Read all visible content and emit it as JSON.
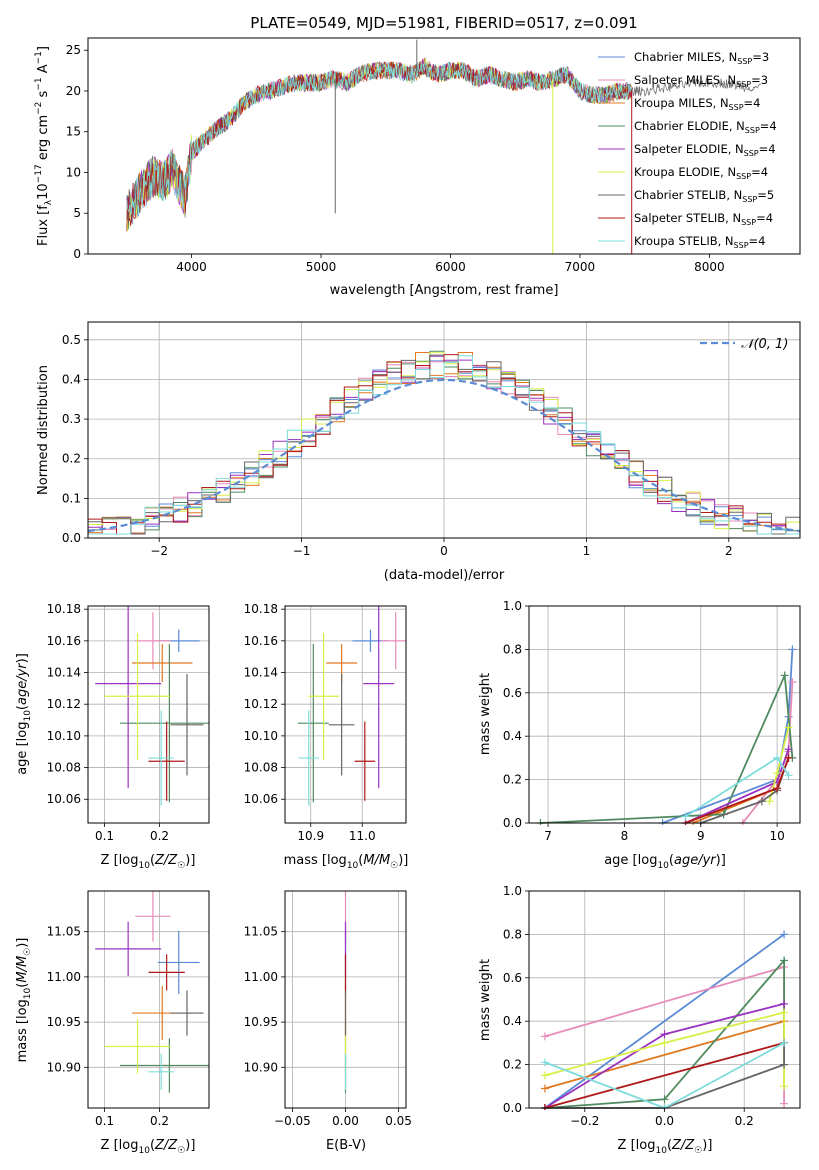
{
  "title": "PLATE=0549, MJD=51981, FIBERID=0517, z=0.091",
  "colors": {
    "chabrier_miles": "#5b8bd5",
    "salpeter_miles": "#e88bb8",
    "kroupa_miles": "#e07820",
    "chabrier_elodie": "#4f8a5f",
    "salpeter_elodie": "#9a32c0",
    "kroupa_elodie": "#d8ef48",
    "chabrier_stelib": "#666666",
    "salpeter_stelib": "#b01818",
    "kroupa_stelib": "#7fdcdc",
    "normal": "#5b8bd5",
    "grid": "#b0b0b0"
  },
  "chart_data": [
    {
      "id": "spectrum",
      "type": "line",
      "xlabel": "wavelength [Angstrom, rest frame]",
      "ylabel": "Flux [f_λ10^{-17} erg cm^{-2} s^{-1} A^{-1}]",
      "xlim": [
        3200,
        8700
      ],
      "ylim": [
        0,
        26.5
      ],
      "xticks": [
        4000,
        5000,
        6000,
        7000,
        8000
      ],
      "yticks": [
        0,
        5,
        10,
        15,
        20,
        25
      ],
      "grid": false,
      "legend_position": "top-right",
      "legend": [
        {
          "main": "Chabrier MILES, N",
          "sub": "SSP",
          "tail": "=3",
          "color": "#5b8bd5"
        },
        {
          "main": "Salpeter MILES, N",
          "sub": "SSP",
          "tail": "=3",
          "color": "#e88bb8"
        },
        {
          "main": "Kroupa MILES, N",
          "sub": "SSP",
          "tail": "=4",
          "color": "#e07820"
        },
        {
          "main": "Chabrier ELODIE, N",
          "sub": "SSP",
          "tail": "=4",
          "color": "#4f8a5f"
        },
        {
          "main": "Salpeter ELODIE, N",
          "sub": "SSP",
          "tail": "=4",
          "color": "#9a32c0"
        },
        {
          "main": "Kroupa ELODIE, N",
          "sub": "SSP",
          "tail": "=4",
          "color": "#d8ef48"
        },
        {
          "main": "Chabrier STELIB, N",
          "sub": "SSP",
          "tail": "=5",
          "color": "#666666"
        },
        {
          "main": "Salpeter STELIB, N",
          "sub": "SSP",
          "tail": "=4",
          "color": "#b01818"
        },
        {
          "main": "Kroupa STELIB, N",
          "sub": "SSP",
          "tail": "=4",
          "color": "#7fdcdc"
        }
      ],
      "continuum": [
        [
          3500,
          5.0
        ],
        [
          3600,
          7.5
        ],
        [
          3700,
          9.5
        ],
        [
          3800,
          9.0
        ],
        [
          3850,
          10.5
        ],
        [
          3950,
          7.0
        ],
        [
          4000,
          12.5
        ],
        [
          4100,
          14.0
        ],
        [
          4200,
          15.5
        ],
        [
          4300,
          16.5
        ],
        [
          4400,
          18.5
        ],
        [
          4500,
          19.5
        ],
        [
          4600,
          20.0
        ],
        [
          4700,
          20.5
        ],
        [
          4800,
          21.0
        ],
        [
          4900,
          21.0
        ],
        [
          5000,
          21.0
        ],
        [
          5100,
          21.5
        ],
        [
          5200,
          21.0
        ],
        [
          5300,
          22.0
        ],
        [
          5400,
          22.5
        ],
        [
          5500,
          22.5
        ],
        [
          5600,
          22.5
        ],
        [
          5700,
          22.0
        ],
        [
          5800,
          23.0
        ],
        [
          5900,
          22.0
        ],
        [
          6000,
          22.5
        ],
        [
          6100,
          22.5
        ],
        [
          6200,
          21.5
        ],
        [
          6300,
          22.0
        ],
        [
          6400,
          21.5
        ],
        [
          6500,
          21.0
        ],
        [
          6600,
          21.5
        ],
        [
          6700,
          21.0
        ],
        [
          6800,
          21.5
        ],
        [
          6900,
          22.0
        ],
        [
          7000,
          20.0
        ],
        [
          7100,
          19.5
        ],
        [
          7200,
          19.5
        ],
        [
          7300,
          20.0
        ],
        [
          7400,
          20.0
        ],
        [
          7500,
          20.0
        ],
        [
          7700,
          20.5
        ],
        [
          7900,
          21.0
        ],
        [
          8100,
          21.0
        ],
        [
          8300,
          20.5
        ],
        [
          8400,
          20.5
        ]
      ],
      "spikes": [
        [
          5110,
          5.0
        ],
        [
          5740,
          26.3
        ],
        [
          6790,
          0
        ],
        [
          7400,
          0
        ]
      ]
    },
    {
      "id": "residuals",
      "type": "line",
      "xlabel": "(data-model)/error",
      "ylabel": "Normed distribution",
      "xlim": [
        -2.5,
        2.5
      ],
      "ylim": [
        0,
        0.545
      ],
      "xticks": [
        -2,
        -1,
        0,
        1,
        2
      ],
      "yticks": [
        0.0,
        0.1,
        0.2,
        0.3,
        0.4,
        0.5
      ],
      "grid": true,
      "legend_position": "top-right",
      "legend": [
        {
          "label": "𝒩(0, 1)",
          "color": "#5b8bd5",
          "style": "dashed"
        }
      ],
      "bin_width": 0.1
    },
    {
      "id": "age_vs_Z",
      "type": "scatter",
      "xlabel": "Z [log10(Z/Z☉)]",
      "ylabel": "age [log10(age/yr)]",
      "xlim": [
        0.07,
        0.29
      ],
      "ylim": [
        10.045,
        10.182
      ],
      "xticks": [
        0.1,
        0.2
      ],
      "yticks": [
        10.06,
        10.08,
        10.1,
        10.12,
        10.14,
        10.16,
        10.18
      ],
      "grid": true,
      "points": [
        {
          "x": 0.235,
          "y": 10.16,
          "xerr": 0.038,
          "yerr": 0.007,
          "color": "#5b8bd5"
        },
        {
          "x": 0.188,
          "y": 10.16,
          "xerr": 0.032,
          "yerr": 0.018,
          "color": "#e88bb8"
        },
        {
          "x": 0.205,
          "y": 10.146,
          "xerr": 0.055,
          "yerr": 0.012,
          "color": "#e07820"
        },
        {
          "x": 0.218,
          "y": 10.108,
          "xerr": 0.09,
          "yerr": 0.05,
          "color": "#4f8a5f"
        },
        {
          "x": 0.143,
          "y": 10.133,
          "xerr": 0.06,
          "yerr": 0.066,
          "color": "#9a32c0"
        },
        {
          "x": 0.16,
          "y": 10.125,
          "xerr": 0.06,
          "yerr": 0.04,
          "color": "#d8ef48"
        },
        {
          "x": 0.25,
          "y": 10.107,
          "xerr": 0.03,
          "yerr": 0.032,
          "color": "#666666"
        },
        {
          "x": 0.213,
          "y": 10.084,
          "xerr": 0.033,
          "yerr": 0.025,
          "color": "#b01818"
        },
        {
          "x": 0.203,
          "y": 10.086,
          "xerr": 0.023,
          "yerr": 0.03,
          "color": "#7fdcdc"
        }
      ]
    },
    {
      "id": "age_vs_mass",
      "type": "scatter",
      "xlabel": "mass [log10(M/M☉)]",
      "ylabel": "",
      "xlim": [
        10.85,
        11.085
      ],
      "ylim": [
        10.045,
        10.182
      ],
      "xticks": [
        10.9,
        11.0
      ],
      "yticks": [
        10.06,
        10.08,
        10.1,
        10.12,
        10.14,
        10.16,
        10.18
      ],
      "grid": true,
      "points": [
        {
          "x": 11.016,
          "y": 10.16,
          "xerr": 0.035,
          "yerr": 0.007,
          "color": "#5b8bd5"
        },
        {
          "x": 11.065,
          "y": 10.16,
          "xerr": 0.028,
          "yerr": 0.018,
          "color": "#e88bb8"
        },
        {
          "x": 10.96,
          "y": 10.146,
          "xerr": 0.03,
          "yerr": 0.012,
          "color": "#e07820"
        },
        {
          "x": 10.905,
          "y": 10.108,
          "xerr": 0.03,
          "yerr": 0.05,
          "color": "#4f8a5f"
        },
        {
          "x": 11.032,
          "y": 10.133,
          "xerr": 0.03,
          "yerr": 0.066,
          "color": "#9a32c0"
        },
        {
          "x": 10.925,
          "y": 10.125,
          "xerr": 0.03,
          "yerr": 0.04,
          "color": "#d8ef48"
        },
        {
          "x": 10.96,
          "y": 10.107,
          "xerr": 0.025,
          "yerr": 0.032,
          "color": "#666666"
        },
        {
          "x": 11.005,
          "y": 10.084,
          "xerr": 0.02,
          "yerr": 0.025,
          "color": "#b01818"
        },
        {
          "x": 10.896,
          "y": 10.086,
          "xerr": 0.02,
          "yerr": 0.03,
          "color": "#7fdcdc"
        }
      ]
    },
    {
      "id": "weight_vs_age",
      "type": "line",
      "xlabel": "age [log10(age/yr)]",
      "ylabel": "mass weight",
      "xlim": [
        6.75,
        10.3
      ],
      "ylim": [
        0,
        1.0
      ],
      "xticks": [
        7,
        8,
        9,
        10
      ],
      "yticks": [
        0.0,
        0.2,
        0.4,
        0.6,
        0.8,
        1.0
      ],
      "grid": true,
      "series": [
        {
          "color": "#5b8bd5",
          "x": [
            8.5,
            10.0,
            10.15,
            10.2
          ],
          "y": [
            0.0,
            0.2,
            0.49,
            0.8
          ]
        },
        {
          "color": "#e88bb8",
          "x": [
            9.55,
            10.0,
            10.15,
            10.2
          ],
          "y": [
            0.0,
            0.2,
            0.33,
            0.65
          ]
        },
        {
          "color": "#e07820",
          "x": [
            8.9,
            10.0,
            10.15
          ],
          "y": [
            0.0,
            0.16,
            0.3
          ]
        },
        {
          "color": "#4f8a5f",
          "x": [
            6.9,
            9.3,
            10.1,
            10.2
          ],
          "y": [
            0.0,
            0.04,
            0.68,
            0.3
          ]
        },
        {
          "color": "#9a32c0",
          "x": [
            8.8,
            10.0,
            10.15
          ],
          "y": [
            0.0,
            0.19,
            0.34
          ]
        },
        {
          "color": "#d8ef48",
          "x": [
            9.9,
            10.0,
            10.15
          ],
          "y": [
            0.1,
            0.23,
            0.44
          ]
        },
        {
          "color": "#666666",
          "x": [
            9.0,
            9.8,
            10.0,
            10.15
          ],
          "y": [
            0.0,
            0.1,
            0.15,
            0.3
          ]
        },
        {
          "color": "#b01818",
          "x": [
            8.8,
            10.0,
            10.15
          ],
          "y": [
            0.0,
            0.16,
            0.3
          ]
        },
        {
          "color": "#7fdcdc",
          "x": [
            8.8,
            10.0,
            10.15
          ],
          "y": [
            0.03,
            0.3,
            0.22
          ]
        }
      ]
    },
    {
      "id": "mass_vs_Z",
      "type": "scatter",
      "xlabel": "Z [log10(Z/Z☉)]",
      "ylabel": "mass [log10(M/M☉)]",
      "xlim": [
        0.07,
        0.29
      ],
      "ylim": [
        10.855,
        11.095
      ],
      "xticks": [
        0.1,
        0.2
      ],
      "yticks": [
        10.9,
        10.95,
        11.0,
        11.05
      ],
      "grid": true,
      "points": [
        {
          "x": 0.235,
          "y": 11.016,
          "xerr": 0.038,
          "yerr": 0.035,
          "color": "#5b8bd5"
        },
        {
          "x": 0.188,
          "y": 11.067,
          "xerr": 0.032,
          "yerr": 0.028,
          "color": "#e88bb8"
        },
        {
          "x": 0.205,
          "y": 10.96,
          "xerr": 0.055,
          "yerr": 0.03,
          "color": "#e07820"
        },
        {
          "x": 0.218,
          "y": 10.902,
          "xerr": 0.09,
          "yerr": 0.03,
          "color": "#4f8a5f"
        },
        {
          "x": 0.143,
          "y": 11.031,
          "xerr": 0.06,
          "yerr": 0.03,
          "color": "#9a32c0"
        },
        {
          "x": 0.16,
          "y": 10.923,
          "xerr": 0.06,
          "yerr": 0.03,
          "color": "#d8ef48"
        },
        {
          "x": 0.25,
          "y": 10.96,
          "xerr": 0.03,
          "yerr": 0.025,
          "color": "#666666"
        },
        {
          "x": 0.213,
          "y": 11.005,
          "xerr": 0.033,
          "yerr": 0.02,
          "color": "#b01818"
        },
        {
          "x": 0.203,
          "y": 10.895,
          "xerr": 0.023,
          "yerr": 0.02,
          "color": "#7fdcdc"
        }
      ]
    },
    {
      "id": "mass_vs_ebv",
      "type": "scatter",
      "xlabel": "E(B-V)",
      "ylabel": "",
      "xlim": [
        -0.057,
        0.057
      ],
      "ylim": [
        10.855,
        11.095
      ],
      "xticks": [
        -0.05,
        0.0,
        0.05
      ],
      "yticks": [
        10.9,
        10.95,
        11.0,
        11.05
      ],
      "grid": true,
      "points": [
        {
          "x": 0.0,
          "y": 11.016,
          "xerr": 0.0,
          "yerr": 0.035,
          "color": "#5b8bd5"
        },
        {
          "x": 0.0,
          "y": 11.067,
          "xerr": 0.0,
          "yerr": 0.028,
          "color": "#e88bb8"
        },
        {
          "x": 0.0,
          "y": 10.96,
          "xerr": 0.0,
          "yerr": 0.03,
          "color": "#e07820"
        },
        {
          "x": 0.0,
          "y": 10.902,
          "xerr": 0.0,
          "yerr": 0.03,
          "color": "#4f8a5f"
        },
        {
          "x": 0.0,
          "y": 11.031,
          "xerr": 0.0,
          "yerr": 0.03,
          "color": "#9a32c0"
        },
        {
          "x": 0.0,
          "y": 10.923,
          "xerr": 0.0,
          "yerr": 0.03,
          "color": "#d8ef48"
        },
        {
          "x": 0.0,
          "y": 10.96,
          "xerr": 0.0,
          "yerr": 0.025,
          "color": "#666666"
        },
        {
          "x": 0.0,
          "y": 11.005,
          "xerr": 0.0,
          "yerr": 0.02,
          "color": "#b01818"
        },
        {
          "x": 0.0,
          "y": 10.895,
          "xerr": 0.0,
          "yerr": 0.02,
          "color": "#7fdcdc"
        }
      ]
    },
    {
      "id": "weight_vs_Z",
      "type": "line",
      "xlabel": "Z [log10(Z/Z☉)]",
      "ylabel": "mass weight",
      "xlim": [
        -0.34,
        0.34
      ],
      "ylim": [
        0,
        1.0
      ],
      "xticks": [
        -0.2,
        0.0,
        0.2
      ],
      "yticks": [
        0.0,
        0.2,
        0.4,
        0.6,
        0.8,
        1.0
      ],
      "grid": true,
      "series": [
        {
          "color": "#5b8bd5",
          "x": [
            -0.3,
            0.3
          ],
          "y": [
            0.0,
            0.8
          ]
        },
        {
          "color": "#e88bb8",
          "x": [
            -0.3,
            0.3,
            0.3
          ],
          "y": [
            0.33,
            0.65,
            0.02
          ]
        },
        {
          "color": "#e07820",
          "x": [
            -0.3,
            0.3
          ],
          "y": [
            0.09,
            0.4
          ]
        },
        {
          "color": "#4f8a5f",
          "x": [
            -0.3,
            0.0,
            0.3,
            0.3
          ],
          "y": [
            0.0,
            0.04,
            0.68,
            0.3
          ]
        },
        {
          "color": "#9a32c0",
          "x": [
            -0.3,
            0.0,
            0.3
          ],
          "y": [
            0.0,
            0.34,
            0.48
          ]
        },
        {
          "color": "#d8ef48",
          "x": [
            -0.3,
            0.0,
            0.3,
            0.3
          ],
          "y": [
            0.15,
            0.3,
            0.44,
            0.1
          ]
        },
        {
          "color": "#666666",
          "x": [
            -0.3,
            0.0,
            0.3,
            0.3
          ],
          "y": [
            0.0,
            0.0,
            0.2,
            0.3
          ]
        },
        {
          "color": "#b01818",
          "x": [
            -0.3,
            0.3
          ],
          "y": [
            0.0,
            0.3
          ]
        },
        {
          "color": "#7fdcdc",
          "x": [
            -0.3,
            0.0,
            0.3
          ],
          "y": [
            0.21,
            0.0,
            0.3
          ]
        }
      ]
    }
  ]
}
